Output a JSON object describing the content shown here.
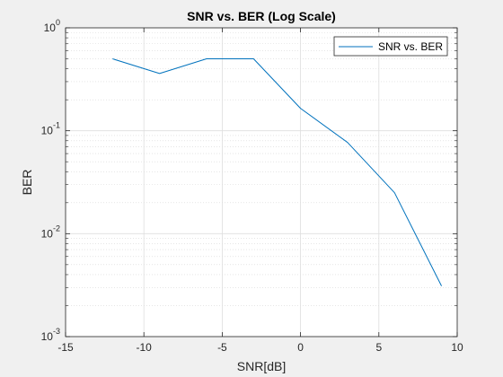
{
  "chart_data": {
    "type": "line",
    "title": "SNR vs. BER (Log Scale)",
    "xlabel": "SNR[dB]",
    "ylabel": "BER",
    "xlim": [
      -15,
      10
    ],
    "ylim": [
      0.001,
      1
    ],
    "yscale": "log",
    "grid": "on (major and minor)",
    "legend_location": "top-right",
    "x_ticks": [
      "-15",
      "-10",
      "-5",
      "0",
      "5",
      "10"
    ],
    "y_tick_bases": [
      "10",
      "10",
      "10",
      "10"
    ],
    "y_tick_exponents": [
      "-3",
      "-2",
      "-1",
      "0"
    ],
    "series": [
      {
        "name": "SNR vs. BER",
        "color": "#0072BD",
        "x": [
          -12,
          -9,
          -6,
          -3,
          0,
          3,
          6,
          9
        ],
        "y": [
          0.5,
          0.36,
          0.5,
          0.5,
          0.165,
          0.077,
          0.025,
          0.0031
        ]
      }
    ]
  }
}
